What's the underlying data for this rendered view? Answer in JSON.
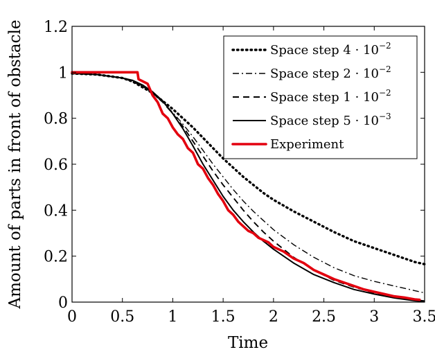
{
  "chart_data": {
    "type": "line",
    "xlabel": "Time",
    "ylabel": "Amount of parts in front of obstacle",
    "xlim": [
      0,
      3.5
    ],
    "ylim": [
      0,
      1.2
    ],
    "xticks": [
      "0",
      "0.5",
      "1",
      "1.5",
      "2",
      "2.5",
      "3",
      "3.5"
    ],
    "yticks": [
      "0",
      "0.2",
      "0.4",
      "0.6",
      "0.8",
      "1",
      "1.2"
    ],
    "grid": false,
    "legend_position": "top-right",
    "series": [
      {
        "name": "Space step 4·10⁻²",
        "legend_base": "Space step 4",
        "legend_exp": "−2",
        "style": "dotted",
        "color": "#000000",
        "x": [
          0,
          0.25,
          0.5,
          0.6,
          0.7,
          0.8,
          0.9,
          1.0,
          1.1,
          1.2,
          1.3,
          1.4,
          1.5,
          1.6,
          1.7,
          1.8,
          1.9,
          2.0,
          2.2,
          2.4,
          2.6,
          2.8,
          3.0,
          3.2,
          3.4,
          3.5
        ],
        "y": [
          0.995,
          0.99,
          0.975,
          0.96,
          0.935,
          0.91,
          0.875,
          0.84,
          0.8,
          0.76,
          0.715,
          0.67,
          0.625,
          0.585,
          0.545,
          0.51,
          0.475,
          0.445,
          0.395,
          0.35,
          0.305,
          0.265,
          0.235,
          0.205,
          0.175,
          0.165
        ]
      },
      {
        "name": "Space step 2·10⁻²",
        "legend_base": "Space step 2",
        "legend_exp": "−2",
        "style": "dashdot",
        "color": "#000000",
        "x": [
          0,
          0.25,
          0.5,
          0.6,
          0.7,
          0.8,
          0.9,
          1.0,
          1.1,
          1.2,
          1.3,
          1.4,
          1.5,
          1.6,
          1.7,
          1.8,
          1.9,
          2.0,
          2.2,
          2.4,
          2.6,
          2.8,
          3.0,
          3.2,
          3.4,
          3.5
        ],
        "y": [
          0.995,
          0.99,
          0.975,
          0.96,
          0.94,
          0.91,
          0.87,
          0.825,
          0.775,
          0.72,
          0.66,
          0.6,
          0.545,
          0.49,
          0.44,
          0.395,
          0.355,
          0.315,
          0.25,
          0.195,
          0.15,
          0.115,
          0.09,
          0.07,
          0.05,
          0.04
        ]
      },
      {
        "name": "Space step 1·10⁻²",
        "legend_base": "Space step 1",
        "legend_exp": "−2",
        "style": "dashed",
        "color": "#000000",
        "x": [
          0,
          0.25,
          0.5,
          0.6,
          0.7,
          0.8,
          0.9,
          1.0,
          1.1,
          1.2,
          1.3,
          1.4,
          1.5,
          1.6,
          1.7,
          1.8,
          1.9,
          2.0,
          2.2,
          2.4,
          2.6,
          2.8,
          3.0,
          3.2,
          3.4,
          3.5
        ],
        "y": [
          0.995,
          0.99,
          0.975,
          0.96,
          0.94,
          0.91,
          0.87,
          0.82,
          0.765,
          0.7,
          0.635,
          0.57,
          0.51,
          0.455,
          0.4,
          0.35,
          0.305,
          0.265,
          0.195,
          0.14,
          0.095,
          0.065,
          0.04,
          0.02,
          0.01,
          0.005
        ]
      },
      {
        "name": "Space step 5·10⁻³",
        "legend_base": "Space step 5",
        "legend_exp": "−3",
        "style": "solid",
        "color": "#000000",
        "x": [
          0,
          0.25,
          0.5,
          0.6,
          0.7,
          0.8,
          0.9,
          1.0,
          1.1,
          1.2,
          1.3,
          1.4,
          1.5,
          1.6,
          1.7,
          1.8,
          1.9,
          2.0,
          2.2,
          2.4,
          2.6,
          2.8,
          3.0,
          3.2,
          3.4,
          3.5
        ],
        "y": [
          0.995,
          0.99,
          0.975,
          0.965,
          0.945,
          0.915,
          0.875,
          0.82,
          0.755,
          0.68,
          0.6,
          0.53,
          0.46,
          0.4,
          0.35,
          0.305,
          0.265,
          0.23,
          0.17,
          0.12,
          0.085,
          0.055,
          0.035,
          0.018,
          0.006,
          0.002
        ]
      },
      {
        "name": "Experiment",
        "legend_base": "Experiment",
        "legend_exp": "",
        "style": "solid-thick",
        "color": "#e3000f",
        "x": [
          0,
          0.65,
          0.66,
          0.75,
          0.8,
          0.85,
          0.9,
          0.95,
          1.0,
          1.05,
          1.1,
          1.15,
          1.2,
          1.25,
          1.3,
          1.35,
          1.4,
          1.45,
          1.5,
          1.55,
          1.6,
          1.65,
          1.7,
          1.75,
          1.8,
          1.85,
          1.9,
          1.95,
          2.0,
          2.1,
          2.2,
          2.3,
          2.4,
          2.5,
          2.6,
          2.7,
          2.8,
          2.9,
          3.0,
          3.1,
          3.2,
          3.3,
          3.4,
          3.45
        ],
        "y": [
          1.0,
          1.0,
          0.97,
          0.95,
          0.9,
          0.87,
          0.82,
          0.8,
          0.76,
          0.73,
          0.71,
          0.67,
          0.65,
          0.6,
          0.58,
          0.54,
          0.51,
          0.47,
          0.44,
          0.4,
          0.38,
          0.35,
          0.33,
          0.31,
          0.3,
          0.28,
          0.27,
          0.26,
          0.24,
          0.22,
          0.19,
          0.17,
          0.14,
          0.12,
          0.1,
          0.085,
          0.07,
          0.055,
          0.045,
          0.035,
          0.025,
          0.02,
          0.012,
          0.01
        ]
      }
    ]
  }
}
